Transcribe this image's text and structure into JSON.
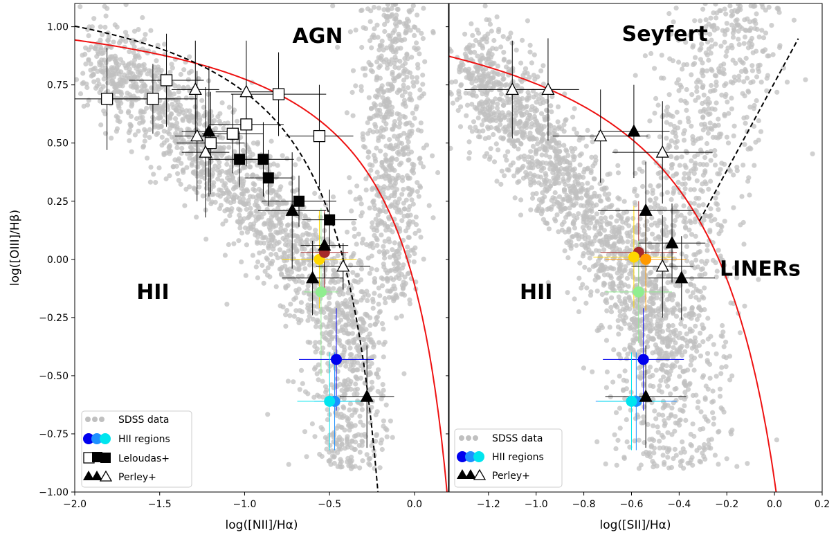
{
  "chart_data": [
    {
      "type": "scatter",
      "title": "",
      "xlabel": "log([NII]/Hα)",
      "ylabel": "log([OIII]/Hβ)",
      "xlim": [
        -2.0,
        0.2
      ],
      "ylim": [
        -1.0,
        1.1
      ],
      "xticks": [
        -2.0,
        -1.5,
        -1.0,
        -0.5,
        0.0
      ],
      "xtick_labels": [
        "−2.0",
        "−1.5",
        "−1.0",
        "−0.5",
        "0.0"
      ],
      "yticks": [
        -1.0,
        -0.75,
        -0.5,
        -0.25,
        0.0,
        0.25,
        0.5,
        0.75,
        1.0
      ],
      "ytick_labels": [
        "−1.00",
        "−0.75",
        "−0.50",
        "−0.25",
        "0.00",
        "0.25",
        "0.50",
        "0.75",
        "1.00"
      ],
      "grid": false,
      "legend_placement": "bottom-left",
      "legend": [
        "SDSS data",
        "HII regions",
        "Leloudas+",
        "Perley+"
      ],
      "annotations": [
        {
          "text": "AGN",
          "x": -0.57,
          "y": 0.93
        },
        {
          "text": "HII",
          "x": -1.54,
          "y": -0.17
        }
      ],
      "lines": [
        {
          "name": "red-demarcation",
          "color": "#ee1111",
          "style": "solid",
          "form": "0.61/(x-0.47)+1.19"
        },
        {
          "name": "black-demarcation",
          "color": "#000000",
          "style": "dashed",
          "form": "0.61/(x-0.05)+1.3"
        }
      ],
      "background_cloud": {
        "name": "SDSS data",
        "color": "#c0c0c0"
      },
      "hii_regions": [
        {
          "x": -0.56,
          "y": 0.0,
          "color": "#ffd700",
          "xerr": 0.22,
          "yerr": 0.21
        },
        {
          "x": -0.53,
          "y": 0.03,
          "color": "#a52a2a",
          "xerr": 0.14,
          "yerr": 0.18
        },
        {
          "x": -0.55,
          "y": -0.14,
          "color": "#90ee90",
          "xerr": 0.1,
          "yerr": 0.36
        },
        {
          "x": -0.46,
          "y": -0.43,
          "color": "#0000ee",
          "xerr": 0.22,
          "yerr": 0.22
        },
        {
          "x": -0.47,
          "y": -0.61,
          "color": "#1e90ff",
          "xerr": 0.12,
          "yerr": 0.21
        },
        {
          "x": -0.5,
          "y": -0.61,
          "color": "#00e5ee",
          "xerr": 0.19,
          "yerr": 0.21
        }
      ],
      "leloudas_open": [
        {
          "x": -1.81,
          "y": 0.69,
          "xerr": 0.4,
          "yerr": 0.22
        },
        {
          "x": -1.54,
          "y": 0.69,
          "xerr": 0.26,
          "yerr": 0.15
        },
        {
          "x": -1.46,
          "y": 0.77,
          "xerr": 0.22,
          "yerr": 0.2
        },
        {
          "x": -1.2,
          "y": 0.5,
          "xerr": 0.2,
          "yerr": 0.22
        },
        {
          "x": -1.07,
          "y": 0.54,
          "xerr": 0.18,
          "yerr": 0.17
        },
        {
          "x": -0.99,
          "y": 0.58,
          "xerr": 0.22,
          "yerr": 0.18
        },
        {
          "x": -0.8,
          "y": 0.71,
          "xerr": 0.28,
          "yerr": 0.18
        },
        {
          "x": -0.56,
          "y": 0.53,
          "xerr": 0.2,
          "yerr": 0.22
        }
      ],
      "leloudas_filled": [
        {
          "x": -1.03,
          "y": 0.43,
          "xerr": 0.18,
          "yerr": 0.12
        },
        {
          "x": -0.89,
          "y": 0.43,
          "xerr": 0.18,
          "yerr": 0.16
        },
        {
          "x": -0.86,
          "y": 0.35,
          "xerr": 0.14,
          "yerr": 0.12
        },
        {
          "x": -0.68,
          "y": 0.25,
          "xerr": 0.22,
          "yerr": 0.11
        },
        {
          "x": -0.5,
          "y": 0.17,
          "xerr": 0.16,
          "yerr": 0.13
        }
      ],
      "perley_filled": [
        {
          "x": -1.21,
          "y": 0.55,
          "xerr": 0.16,
          "yerr": 0.28
        },
        {
          "x": -0.72,
          "y": 0.21,
          "xerr": 0.2,
          "yerr": 0.25
        },
        {
          "x": -0.53,
          "y": 0.06,
          "xerr": 0.14,
          "yerr": 0.14
        },
        {
          "x": -0.6,
          "y": -0.08,
          "xerr": 0.18,
          "yerr": 0.16
        },
        {
          "x": -0.28,
          "y": -0.59,
          "xerr": 0.16,
          "yerr": 0.22
        }
      ],
      "perley_open": [
        {
          "x": -1.29,
          "y": 0.73,
          "xerr": 0.14,
          "yerr": 0.21
        },
        {
          "x": -1.28,
          "y": 0.53,
          "xerr": 0.13,
          "yerr": 0.28
        },
        {
          "x": -1.23,
          "y": 0.46,
          "xerr": 0.14,
          "yerr": 0.28
        },
        {
          "x": -0.99,
          "y": 0.72,
          "xerr": 0.18,
          "yerr": 0.22
        },
        {
          "x": -0.42,
          "y": -0.03,
          "xerr": 0.16,
          "yerr": 0.1
        }
      ]
    },
    {
      "type": "scatter",
      "title": "",
      "xlabel": "log([SII]/Hα)",
      "ylabel": "",
      "xlim": [
        -1.365,
        0.2
      ],
      "ylim": [
        -1.0,
        1.1
      ],
      "xticks": [
        -1.2,
        -1.0,
        -0.8,
        -0.6,
        -0.4,
        -0.2,
        0.0,
        0.2
      ],
      "xtick_labels": [
        "−1.2",
        "−1.0",
        "−0.8",
        "−0.6",
        "−0.4",
        "−0.2",
        "0.0",
        "0.2"
      ],
      "grid": false,
      "legend_placement": "bottom-left",
      "legend": [
        "SDSS data",
        "HII regions",
        "Perley+"
      ],
      "annotations": [
        {
          "text": "Seyfert",
          "x": -0.46,
          "y": 0.94
        },
        {
          "text": "HII",
          "x": -1.0,
          "y": -0.17
        },
        {
          "text": "LINERs",
          "x": -0.06,
          "y": -0.07
        }
      ],
      "lines": [
        {
          "name": "red-demarcation",
          "color": "#ee1111",
          "style": "solid",
          "form": "0.72/(x-0.32)+1.30"
        },
        {
          "name": "black-demarcation",
          "color": "#000000",
          "style": "dashed",
          "form": "1.89x+0.76"
        }
      ],
      "background_cloud": {
        "name": "SDSS data",
        "color": "#c0c0c0"
      },
      "hii_regions": [
        {
          "x": -0.57,
          "y": 0.03,
          "color": "#a52a2a",
          "xerr": 0.16,
          "yerr": 0.22
        },
        {
          "x": -0.59,
          "y": 0.01,
          "color": "#ffd700",
          "xerr": 0.17,
          "yerr": 0.22
        },
        {
          "x": -0.54,
          "y": 0.0,
          "color": "#ff9900",
          "xerr": 0.17,
          "yerr": 0.22
        },
        {
          "x": -0.57,
          "y": -0.14,
          "color": "#90ee90",
          "xerr": 0.14,
          "yerr": 0.22
        },
        {
          "x": -0.55,
          "y": -0.43,
          "color": "#0000ee",
          "xerr": 0.17,
          "yerr": 0.22
        },
        {
          "x": -0.58,
          "y": -0.61,
          "color": "#1e90ff",
          "xerr": 0.17,
          "yerr": 0.21
        },
        {
          "x": -0.6,
          "y": -0.61,
          "color": "#00e5ee",
          "xerr": 0.14,
          "yerr": 0.21
        }
      ],
      "perley_filled": [
        {
          "x": -0.59,
          "y": 0.55,
          "xerr": 0.15,
          "yerr": 0.2
        },
        {
          "x": -0.54,
          "y": 0.21,
          "xerr": 0.2,
          "yerr": 0.21
        },
        {
          "x": -0.43,
          "y": 0.07,
          "xerr": 0.14,
          "yerr": 0.17
        },
        {
          "x": -0.39,
          "y": -0.08,
          "xerr": 0.14,
          "yerr": 0.18
        },
        {
          "x": -0.54,
          "y": -0.59,
          "xerr": 0.17,
          "yerr": 0.22
        }
      ],
      "perley_open": [
        {
          "x": -1.1,
          "y": 0.73,
          "xerr": 0.2,
          "yerr": 0.21
        },
        {
          "x": -0.95,
          "y": 0.73,
          "xerr": 0.13,
          "yerr": 0.22
        },
        {
          "x": -0.73,
          "y": 0.53,
          "xerr": 0.2,
          "yerr": 0.2
        },
        {
          "x": -0.47,
          "y": 0.46,
          "xerr": 0.21,
          "yerr": 0.22
        },
        {
          "x": -0.47,
          "y": -0.03,
          "xerr": 0.13,
          "yerr": 0.22
        }
      ]
    }
  ]
}
